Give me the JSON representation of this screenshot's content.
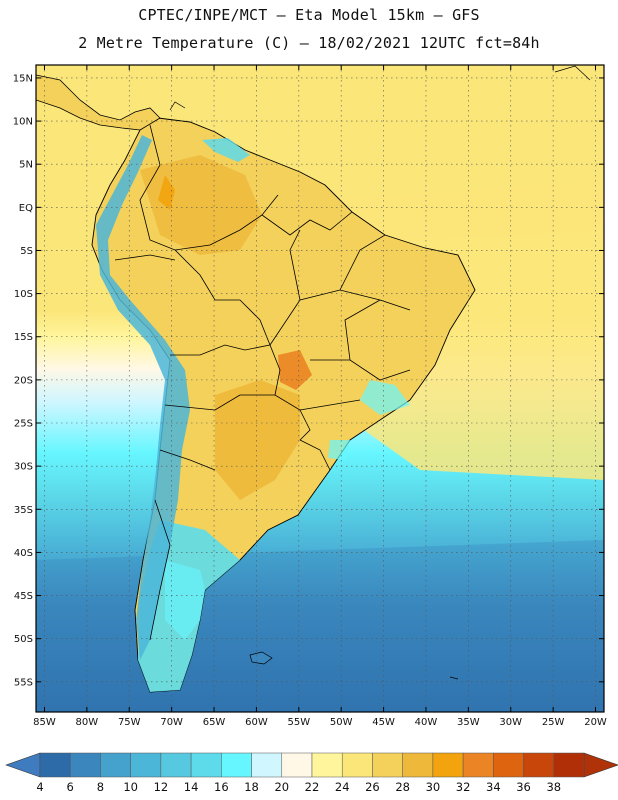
{
  "header": {
    "line1": "CPTEC/INPE/MCT –  Eta Model 15km – GFS",
    "line2": "2 Metre Temperature (C) – 18/02/2021 12UTC fct=84h"
  },
  "map": {
    "lon_range": [
      -86,
      -19
    ],
    "lat_range": [
      -58.5,
      16.5
    ],
    "lat_ticks": [
      {
        "value": 15,
        "label": "15N"
      },
      {
        "value": 10,
        "label": "10N"
      },
      {
        "value": 5,
        "label": "5N"
      },
      {
        "value": 0,
        "label": "EQ"
      },
      {
        "value": -5,
        "label": "5S"
      },
      {
        "value": -10,
        "label": "10S"
      },
      {
        "value": -15,
        "label": "15S"
      },
      {
        "value": -20,
        "label": "20S"
      },
      {
        "value": -25,
        "label": "25S"
      },
      {
        "value": -30,
        "label": "30S"
      },
      {
        "value": -35,
        "label": "35S"
      },
      {
        "value": -40,
        "label": "40S"
      },
      {
        "value": -45,
        "label": "45S"
      },
      {
        "value": -50,
        "label": "50S"
      },
      {
        "value": -55,
        "label": "55S"
      }
    ],
    "lon_ticks": [
      {
        "value": -85,
        "label": "85W"
      },
      {
        "value": -80,
        "label": "80W"
      },
      {
        "value": -75,
        "label": "75W"
      },
      {
        "value": -70,
        "label": "70W"
      },
      {
        "value": -65,
        "label": "65W"
      },
      {
        "value": -60,
        "label": "60W"
      },
      {
        "value": -55,
        "label": "55W"
      },
      {
        "value": -50,
        "label": "50W"
      },
      {
        "value": -45,
        "label": "45W"
      },
      {
        "value": -40,
        "label": "40W"
      },
      {
        "value": -35,
        "label": "35W"
      },
      {
        "value": -30,
        "label": "30W"
      },
      {
        "value": -25,
        "label": "25W"
      },
      {
        "value": -20,
        "label": "20W"
      }
    ]
  },
  "colorbar": {
    "colors": [
      "#2c6aa8",
      "#3a86bd",
      "#45a2cc",
      "#4cb6d9",
      "#56c8e0",
      "#5ddbea",
      "#66f6ff",
      "#d0f6ff",
      "#fff8e6",
      "#fff59c",
      "#fbe67a",
      "#f3d15a",
      "#eeb83a",
      "#f2a30d",
      "#ea8424",
      "#de640f",
      "#c8460a",
      "#b02f06"
    ],
    "low_color": "#3f7cbf",
    "high_color": "#b03208",
    "labels": [
      "4",
      "6",
      "8",
      "10",
      "12",
      "14",
      "16",
      "18",
      "20",
      "22",
      "24",
      "26",
      "28",
      "30",
      "32",
      "34",
      "36",
      "38"
    ]
  }
}
